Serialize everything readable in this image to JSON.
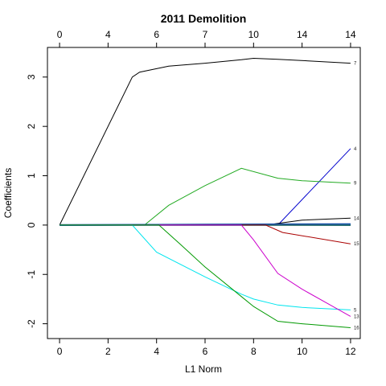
{
  "chart_data": {
    "type": "line",
    "title": "2011 Demolition",
    "xlabel": "L1 Norm",
    "ylabel": "Coefficients",
    "xlim": [
      -0.5,
      12.4
    ],
    "ylim": [
      -2.3,
      3.6
    ],
    "x_ticks": [
      0,
      2,
      4,
      6,
      8,
      10,
      12
    ],
    "y_ticks": [
      -2,
      -1,
      0,
      1,
      2,
      3
    ],
    "x_tick_labels": [
      "0",
      "2",
      "4",
      "6",
      "8",
      "10",
      "12"
    ],
    "y_tick_labels": [
      "-2",
      "-1",
      "0",
      "1",
      "2",
      "3"
    ],
    "top_ticks": [
      0,
      2,
      4,
      6,
      8,
      10,
      12
    ],
    "top_tick_labels": [
      "0",
      "4",
      "6",
      "7",
      "10",
      "14",
      "14"
    ],
    "grid": false,
    "series": [
      {
        "name": "7",
        "color": "#000000",
        "points": [
          [
            0,
            0
          ],
          [
            3,
            3.0
          ],
          [
            3.3,
            3.1
          ],
          [
            4.5,
            3.22
          ],
          [
            6,
            3.28
          ],
          [
            7.5,
            3.35
          ],
          [
            8,
            3.38
          ],
          [
            9,
            3.36
          ],
          [
            12,
            3.28
          ]
        ]
      },
      {
        "name": "4",
        "color": "#0000CD",
        "points": [
          [
            0,
            0
          ],
          [
            9,
            0
          ],
          [
            12,
            1.55
          ]
        ]
      },
      {
        "name": "9",
        "color": "#22AA22",
        "points": [
          [
            0,
            0
          ],
          [
            3.5,
            0
          ],
          [
            4.5,
            0.4
          ],
          [
            6,
            0.8
          ],
          [
            7.5,
            1.15
          ],
          [
            9,
            0.95
          ],
          [
            10,
            0.9
          ],
          [
            12,
            0.85
          ]
        ]
      },
      {
        "name": "14",
        "color": "#000000",
        "points": [
          [
            0,
            0
          ],
          [
            8.5,
            0
          ],
          [
            10,
            0.1
          ],
          [
            12,
            0.14
          ]
        ]
      },
      {
        "name": "",
        "color": "#000080",
        "points": [
          [
            0,
            0
          ],
          [
            12,
            0.02
          ]
        ]
      },
      {
        "name": "",
        "color": "#0077BB",
        "points": [
          [
            0,
            0
          ],
          [
            12,
            0.01
          ]
        ]
      },
      {
        "name": "",
        "color": "#008080",
        "points": [
          [
            0,
            0
          ],
          [
            12,
            -0.01
          ]
        ]
      },
      {
        "name": "",
        "color": "#555555",
        "points": [
          [
            0,
            0
          ],
          [
            12,
            0.0
          ]
        ]
      },
      {
        "name": "15",
        "color": "#AA0000",
        "points": [
          [
            0,
            0
          ],
          [
            8.5,
            0
          ],
          [
            9.2,
            -0.15
          ],
          [
            12,
            -0.38
          ]
        ]
      },
      {
        "name": "5",
        "color": "#00E5EE",
        "points": [
          [
            0,
            0
          ],
          [
            3,
            0
          ],
          [
            4,
            -0.55
          ],
          [
            6,
            -1.05
          ],
          [
            7.5,
            -1.4
          ],
          [
            8,
            -1.5
          ],
          [
            9,
            -1.62
          ],
          [
            10,
            -1.67
          ],
          [
            12,
            -1.72
          ]
        ]
      },
      {
        "name": "13",
        "color": "#CC00CC",
        "points": [
          [
            0,
            0
          ],
          [
            7.5,
            0
          ],
          [
            8,
            -0.3
          ],
          [
            9,
            -0.98
          ],
          [
            10,
            -1.3
          ],
          [
            12,
            -1.85
          ]
        ]
      },
      {
        "name": "16",
        "color": "#009900",
        "points": [
          [
            0,
            0
          ],
          [
            4.1,
            0
          ],
          [
            5,
            -0.4
          ],
          [
            6,
            -0.85
          ],
          [
            7.5,
            -1.45
          ],
          [
            8,
            -1.65
          ],
          [
            9,
            -1.95
          ],
          [
            10,
            -2.0
          ],
          [
            12,
            -2.08
          ]
        ]
      }
    ]
  }
}
